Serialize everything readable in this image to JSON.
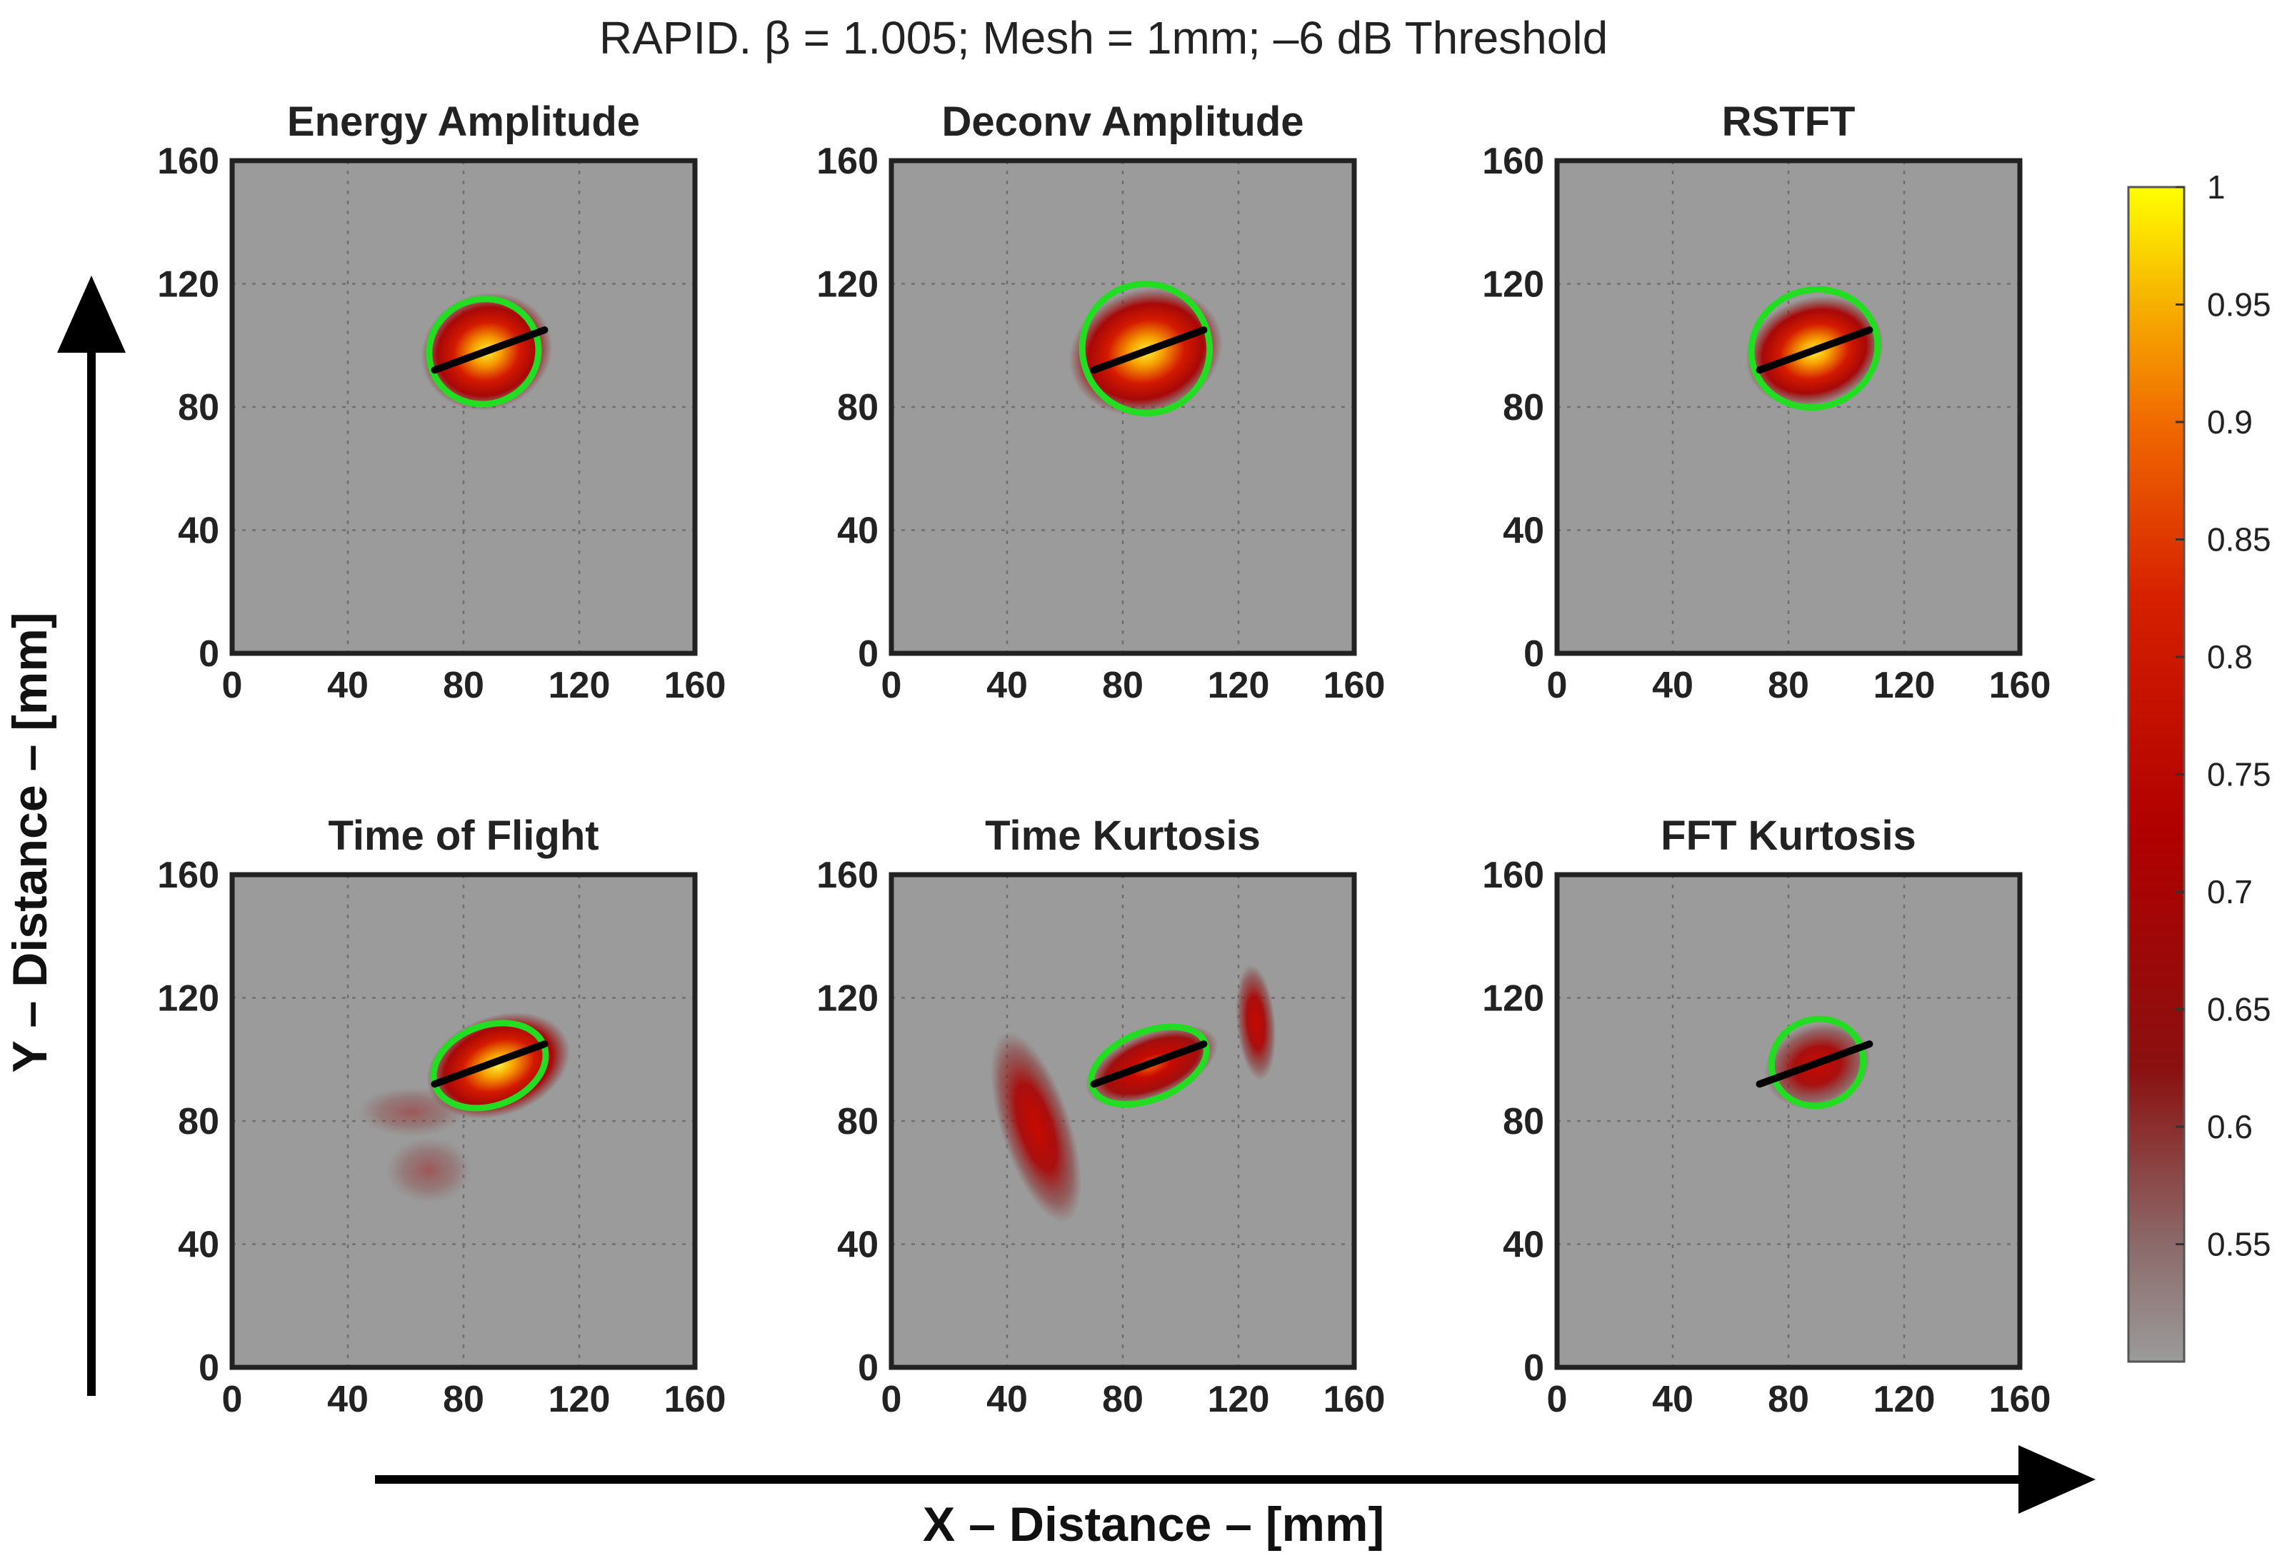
{
  "chart_data": {
    "type": "heatmap",
    "suptitle": "RAPID. β = 1.005; Mesh = 1mm; –6 dB Threshold",
    "xlabel": "X – Distance – [mm]",
    "ylabel": "Y – Distance – [mm]",
    "xlim": [
      0,
      160
    ],
    "ylim": [
      0,
      160
    ],
    "xticks": [
      "0",
      "40",
      "80",
      "120",
      "160"
    ],
    "yticks": [
      "0",
      "40",
      "80",
      "120",
      "160"
    ],
    "colorbar": {
      "range": [
        0.5,
        1
      ],
      "ticks": [
        "0.55",
        "0.6",
        "0.65",
        "0.7",
        "0.75",
        "0.8",
        "0.85",
        "0.9",
        "0.95",
        "1"
      ],
      "colors": [
        "#9b9b9b",
        "#7a3a3a",
        "#8a1010",
        "#b00000",
        "#d62000",
        "#f06a00",
        "#f6b000",
        "#ffff00"
      ]
    },
    "colors": {
      "background": "#9b9b9b",
      "ellipse": "#22dd22",
      "crack": "#000000"
    },
    "crack_line": {
      "x": [
        70,
        108
      ],
      "y": [
        92,
        105
      ]
    },
    "panels": [
      {
        "title": "Energy Amplitude",
        "ellipse": {
          "cx": 87,
          "cy": 98,
          "rx": 19,
          "ry": 17,
          "angle": 18
        },
        "blobs": [
          {
            "cx": 88,
            "cy": 98,
            "rx": 17,
            "ry": 14,
            "angle": 18,
            "peak": 1.0
          }
        ]
      },
      {
        "title": "Deconv Amplitude",
        "ellipse": {
          "cx": 88,
          "cy": 99,
          "rx": 22,
          "ry": 21,
          "angle": 18
        },
        "blobs": [
          {
            "cx": 88,
            "cy": 98,
            "rx": 20,
            "ry": 15,
            "angle": 18,
            "peak": 1.0
          }
        ]
      },
      {
        "title": "RSTFT",
        "ellipse": {
          "cx": 89,
          "cy": 99,
          "rx": 22,
          "ry": 19,
          "angle": 18
        },
        "blobs": [
          {
            "cx": 89,
            "cy": 98,
            "rx": 18,
            "ry": 13,
            "angle": 18,
            "peak": 0.99
          }
        ]
      },
      {
        "title": "Time of Flight",
        "ellipse": {
          "cx": 89,
          "cy": 98,
          "rx": 20,
          "ry": 13,
          "angle": 20
        },
        "blobs": [
          {
            "cx": 92,
            "cy": 98,
            "rx": 19,
            "ry": 12,
            "angle": 20,
            "peak": 1.0
          },
          {
            "cx": 62,
            "cy": 83,
            "rx": 14,
            "ry": 6,
            "angle": 0,
            "peak": 0.55
          },
          {
            "cx": 68,
            "cy": 64,
            "rx": 11,
            "ry": 8,
            "angle": 0,
            "peak": 0.62
          }
        ]
      },
      {
        "title": "Time Kurtosis",
        "ellipse": {
          "cx": 89,
          "cy": 98,
          "rx": 21,
          "ry": 11,
          "angle": 22
        },
        "blobs": [
          {
            "cx": 90,
            "cy": 98,
            "rx": 18,
            "ry": 8,
            "angle": 22,
            "peak": 0.88
          },
          {
            "cx": 50,
            "cy": 78,
            "rx": 9,
            "ry": 24,
            "angle": 18,
            "peak": 0.82
          },
          {
            "cx": 126,
            "cy": 112,
            "rx": 5,
            "ry": 14,
            "angle": 5,
            "peak": 0.72
          }
        ]
      },
      {
        "title": "FFT Kurtosis",
        "ellipse": {
          "cx": 90,
          "cy": 99,
          "rx": 16,
          "ry": 14,
          "angle": 20
        },
        "blobs": [
          {
            "cx": 90,
            "cy": 98,
            "rx": 14,
            "ry": 10,
            "angle": 20,
            "peak": 0.78
          }
        ]
      }
    ]
  }
}
